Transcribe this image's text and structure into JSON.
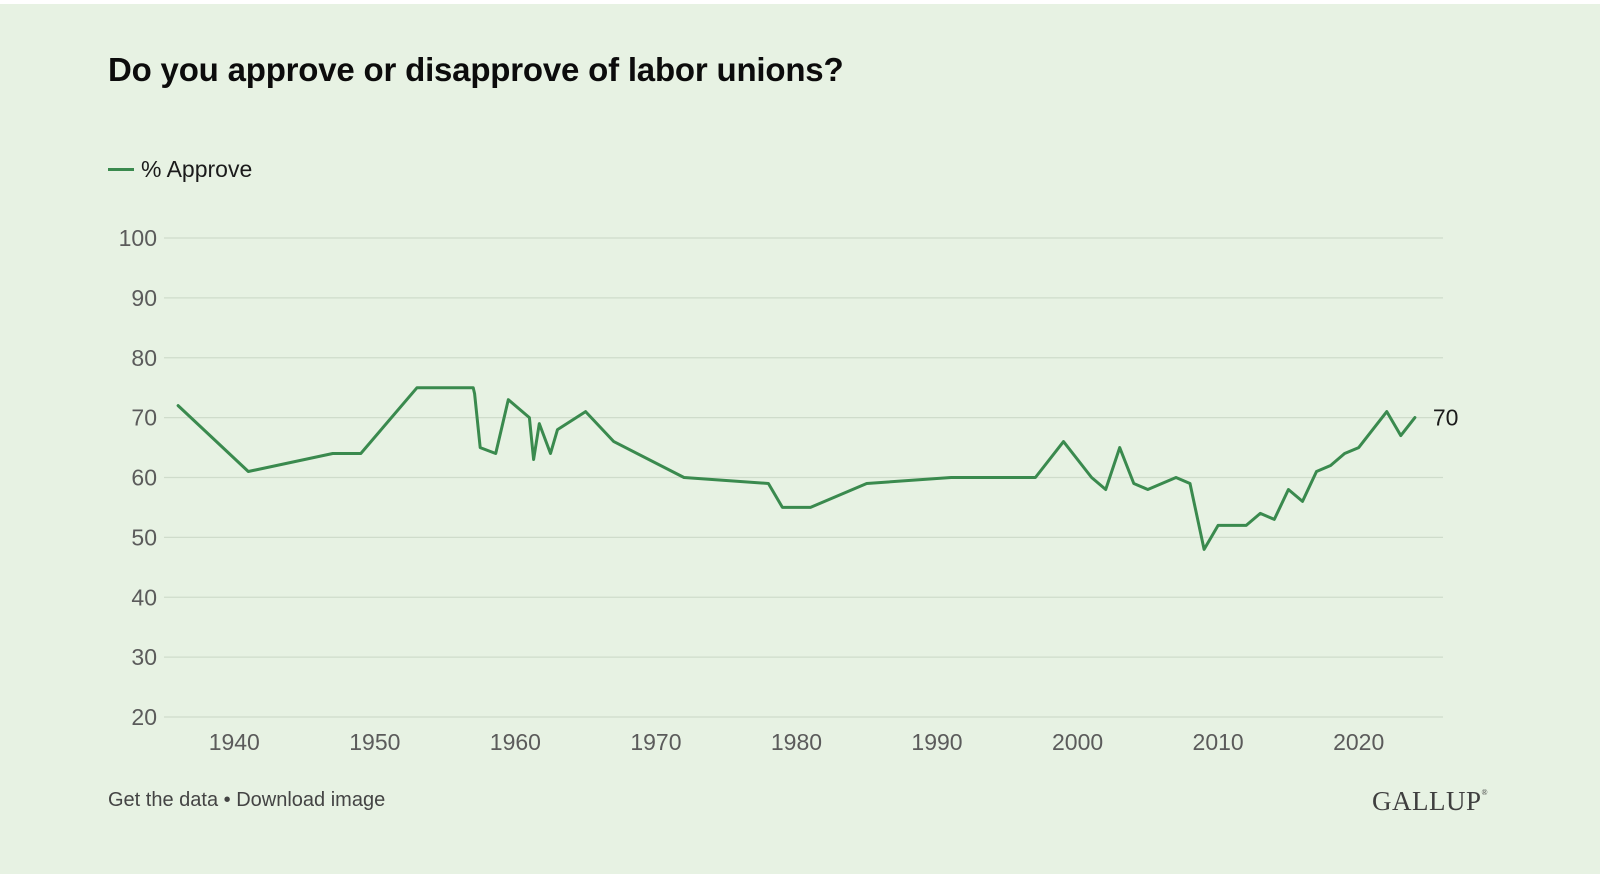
{
  "title": "Do you approve or disapprove of labor unions?",
  "footer": {
    "get_data": "Get the data",
    "separator": "•",
    "download": "Download image"
  },
  "brand": "GALLUP",
  "colors": {
    "background": "#e7f2e3",
    "line": "#3a8a4e",
    "grid": "#cfdccb"
  },
  "chart_data": {
    "type": "line",
    "title": "Do you approve or disapprove of labor unions?",
    "xlabel": "",
    "ylabel": "",
    "xlim": [
      1935,
      2026
    ],
    "ylim": [
      20,
      100
    ],
    "x_ticks": [
      1940,
      1950,
      1960,
      1970,
      1980,
      1990,
      2000,
      2010,
      2020
    ],
    "y_ticks": [
      20,
      30,
      40,
      50,
      60,
      70,
      80,
      90,
      100
    ],
    "grid": "horizontal",
    "legend": "top-left",
    "series": [
      {
        "name": "% Approve",
        "color": "#3a8a4e",
        "end_label": "70",
        "x": [
          1936,
          1941,
          1947,
          1949,
          1953,
          1957,
          1957.1,
          1957.5,
          1958.6,
          1959,
          1959.5,
          1961,
          1961.3,
          1961.7,
          1962.5,
          1963,
          1965,
          1967,
          1972,
          1978,
          1979,
          1981,
          1985,
          1991,
          1997,
          1999,
          2001,
          2002,
          2003,
          2004,
          2005,
          2007,
          2008,
          2009,
          2010,
          2011,
          2012,
          2013,
          2014,
          2015,
          2016,
          2017,
          2018,
          2019,
          2020,
          2022,
          2023,
          2024
        ],
        "values": [
          72,
          61,
          64,
          64,
          75,
          75,
          74,
          65,
          64,
          68,
          73,
          70,
          63,
          69,
          64,
          68,
          71,
          66,
          60,
          59,
          55,
          55,
          59,
          60,
          60,
          66,
          60,
          58,
          65,
          59,
          58,
          60,
          59,
          48,
          52,
          52,
          52,
          54,
          53,
          58,
          56,
          61,
          62,
          64,
          65,
          71,
          67,
          70
        ]
      }
    ]
  }
}
